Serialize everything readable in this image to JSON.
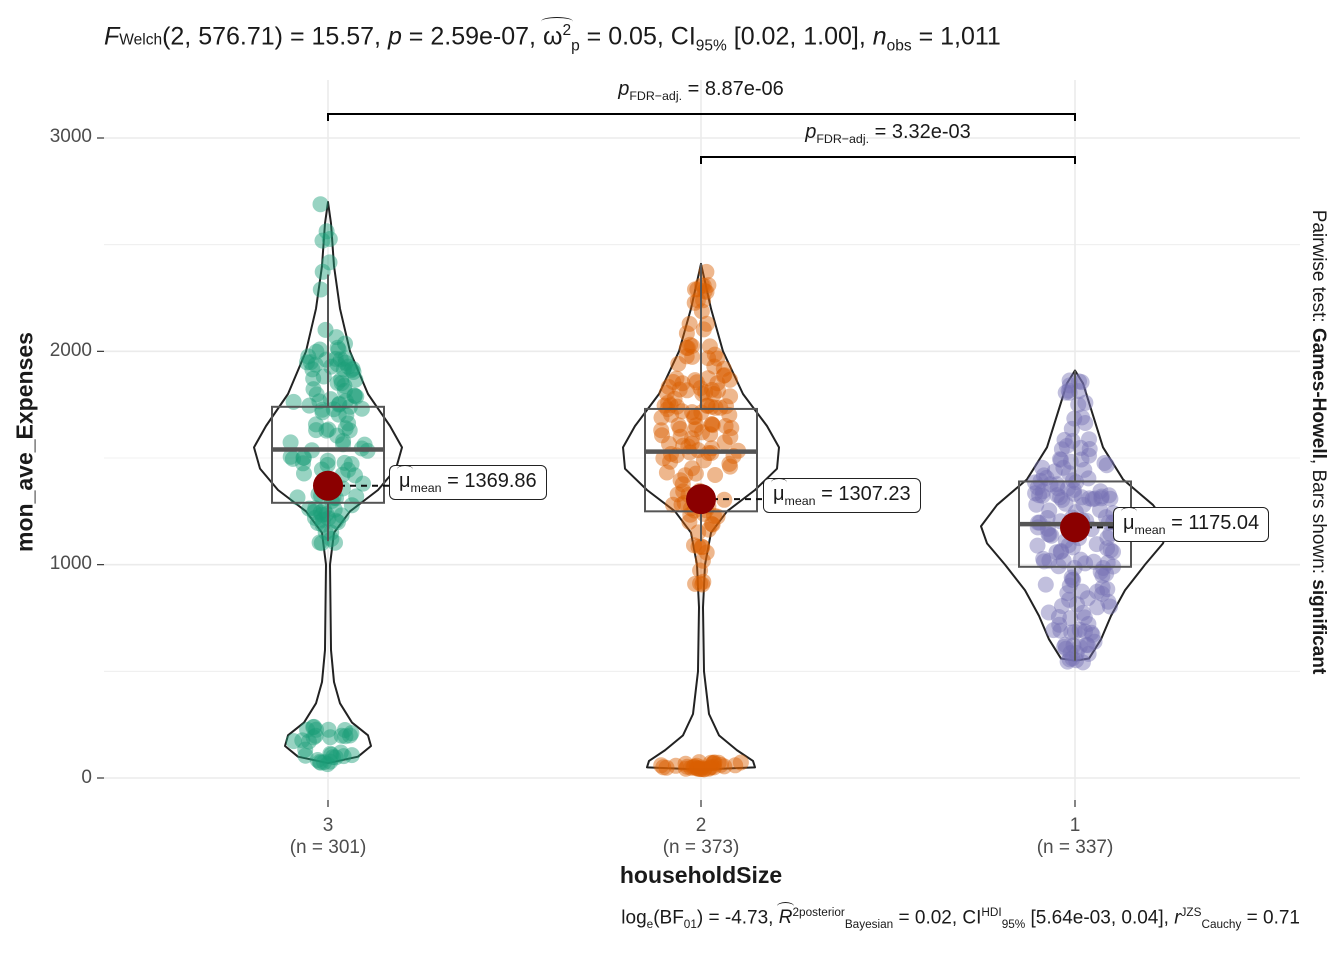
{
  "subtitle": {
    "f_symbol": "F",
    "f_sub": "Welch",
    "f_args": "(2, 576.71)",
    "f_value": " = 15.57, ",
    "p_symbol": "p",
    "p_value": " = 2.59e-07, ",
    "effect_symbol": "ω",
    "effect_sup": "2",
    "effect_sub": "p",
    "effect_value": " = 0.05, CI",
    "ci_sub": "95%",
    "ci_value": " [0.02, 1.00], ",
    "n_symbol": "n",
    "n_sub": "obs",
    "n_value": " = 1,011"
  },
  "caption": {
    "log_text": "log",
    "log_sub": "e",
    "bf_text": "(BF",
    "bf_sub": "01",
    "bf_value": ") = -4.73, ",
    "r_symbol": "R",
    "r_sup": "2",
    "r_sup2": "posterior",
    "r_sub": "Bayesian",
    "r_value": " = 0.02, CI",
    "ci_sup": "HDI",
    "ci_sub": "95%",
    "ci_value": " [5.64e-03, 0.04], ",
    "rc_symbol": "r",
    "rc_sup": "JZS",
    "rc_sub": "Cauchy",
    "rc_value": " = 0.71"
  },
  "pairwise_label": {
    "prefix": "Pairwise test: ",
    "test": "Games-Howell",
    "middle": ", Bars shown: ",
    "shown": "significant"
  },
  "chart_data": {
    "type": "violin",
    "xlabel": "householdSize",
    "ylabel": "mon_ave_Expenses",
    "ylim": [
      0,
      3000
    ],
    "yticks": [
      0,
      1000,
      2000,
      3000
    ],
    "grid": true,
    "categories": [
      {
        "label": "3",
        "n_label": "(n = 301)",
        "color": "#1B9E77",
        "min": 70,
        "q1": 1290,
        "median": 1540,
        "q3": 1740,
        "max": 2700,
        "whisker_low": 1110,
        "whisker_high": 2360,
        "mean": 1369.86,
        "mean_label_sym": "μ",
        "mean_label_sub": "mean",
        "mean_label_value": " = 1369.86"
      },
      {
        "label": "2",
        "n_label": "(n = 373)",
        "color": "#D95F02",
        "min": 40,
        "q1": 1250,
        "median": 1530,
        "q3": 1730,
        "max": 2410,
        "whisker_low": 1110,
        "whisker_high": 2410,
        "mean": 1307.23,
        "mean_label_sym": "μ",
        "mean_label_sub": "mean",
        "mean_label_value": " = 1307.23"
      },
      {
        "label": "1",
        "n_label": "(n = 337)",
        "color": "#7570B3",
        "min": 550,
        "q1": 990,
        "median": 1190,
        "q3": 1390,
        "max": 1910,
        "whisker_low": 550,
        "whisker_high": 1910,
        "mean": 1175.04,
        "mean_label_sym": "μ",
        "mean_label_sub": "mean",
        "mean_label_value": " = 1175.04"
      }
    ],
    "comparisons": [
      {
        "from": "3",
        "to": "1",
        "p_symbol": "p",
        "p_sub": "FDR−adj.",
        "p_value": " = 8.87e-06"
      },
      {
        "from": "2",
        "to": "1",
        "p_symbol": "p",
        "p_sub": "FDR−adj.",
        "p_value": " = 3.32e-03"
      }
    ],
    "mean_point_color": "#8B0000"
  }
}
